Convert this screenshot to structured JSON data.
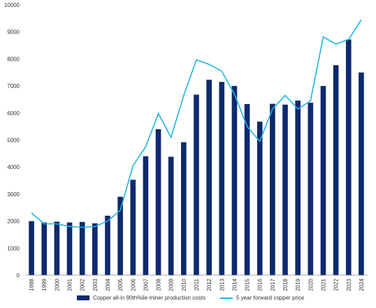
{
  "chart_data": {
    "type": "bar",
    "title": "",
    "xlabel": "",
    "ylabel": "",
    "ylim": [
      0,
      10000
    ],
    "yticks": [
      0,
      1000,
      2000,
      3000,
      4000,
      5000,
      6000,
      7000,
      8000,
      9000,
      10000
    ],
    "grid": false,
    "legend_position": "bottom",
    "categories": [
      "1998",
      "1999",
      "2000",
      "2001",
      "2002",
      "2003",
      "2004",
      "2005",
      "2006",
      "2007",
      "2008",
      "2009",
      "2010",
      "2011",
      "2012",
      "2013",
      "2014",
      "2015",
      "2016",
      "2017",
      "2018",
      "2019",
      "2020",
      "2021",
      "2022",
      "2023",
      "2024"
    ],
    "series": [
      {
        "name": "Copper all-in 90th%ile miner production costs",
        "type": "bar",
        "color": "#0d2a6e",
        "values": [
          2000,
          1950,
          1980,
          1950,
          1970,
          1920,
          2200,
          2900,
          3530,
          4400,
          5400,
          4380,
          4920,
          6680,
          7230,
          7150,
          7000,
          6330,
          5680,
          6340,
          6310,
          6460,
          6380,
          7000,
          7770,
          8720,
          7500
        ]
      },
      {
        "name": "5 year forward copper price",
        "type": "line",
        "color": "#1fb3e0",
        "values": [
          2300,
          1900,
          1900,
          1800,
          1770,
          1800,
          2000,
          2400,
          4050,
          4750,
          5980,
          5100,
          6650,
          7970,
          7800,
          7550,
          6700,
          5500,
          4950,
          6150,
          6650,
          6150,
          6450,
          8820,
          8550,
          8720,
          9450
        ]
      }
    ]
  }
}
